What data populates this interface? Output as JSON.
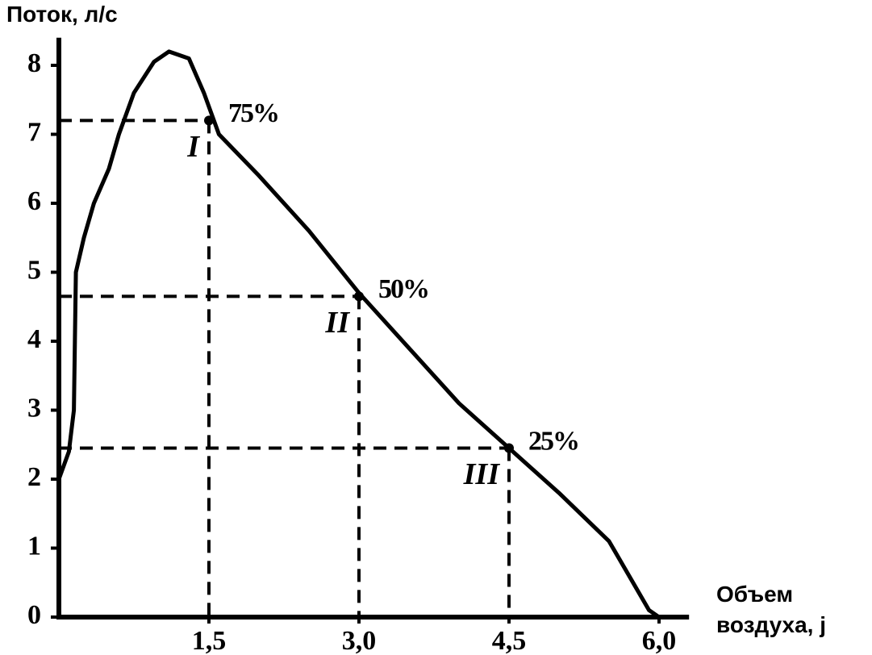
{
  "chart_data": {
    "type": "line",
    "y_label": "Поток, л/с",
    "x_label": "Объем воздуха, j",
    "xlim": [
      0,
      6.3
    ],
    "ylim": [
      0,
      8.4
    ],
    "xticks": [
      {
        "value": 1.5,
        "label": "1,5"
      },
      {
        "value": 3.0,
        "label": "3,0"
      },
      {
        "value": 4.5,
        "label": "4,5"
      },
      {
        "value": 6.0,
        "label": "6,0"
      }
    ],
    "yticks": [
      0,
      1,
      2,
      3,
      4,
      5,
      6,
      7,
      8
    ],
    "series": [
      {
        "color": "#000000",
        "x": [
          0,
          0,
          0.1,
          0.15,
          0.16,
          0.17,
          0.25,
          0.35,
          0.5,
          0.6,
          0.75,
          0.95,
          1.1,
          1.3,
          1.45,
          1.6,
          2.0,
          2.5,
          3.0,
          3.5,
          4.0,
          4.5,
          5.0,
          5.5,
          5.9,
          6.0
        ],
        "values": [
          0,
          2.0,
          2.4,
          3.0,
          4.0,
          5.0,
          5.5,
          6.0,
          6.5,
          7.0,
          7.6,
          8.05,
          8.2,
          8.1,
          7.6,
          7.0,
          6.4,
          5.6,
          4.7,
          3.9,
          3.1,
          2.45,
          1.8,
          1.1,
          0.1,
          0
        ]
      }
    ],
    "points": [
      {
        "name": "I",
        "label": "75%",
        "x": 1.5,
        "y": 7.2
      },
      {
        "name": "II",
        "label": "50%",
        "x": 3.0,
        "y": 4.65
      },
      {
        "name": "III",
        "label": "25%",
        "x": 4.5,
        "y": 2.45
      }
    ]
  }
}
